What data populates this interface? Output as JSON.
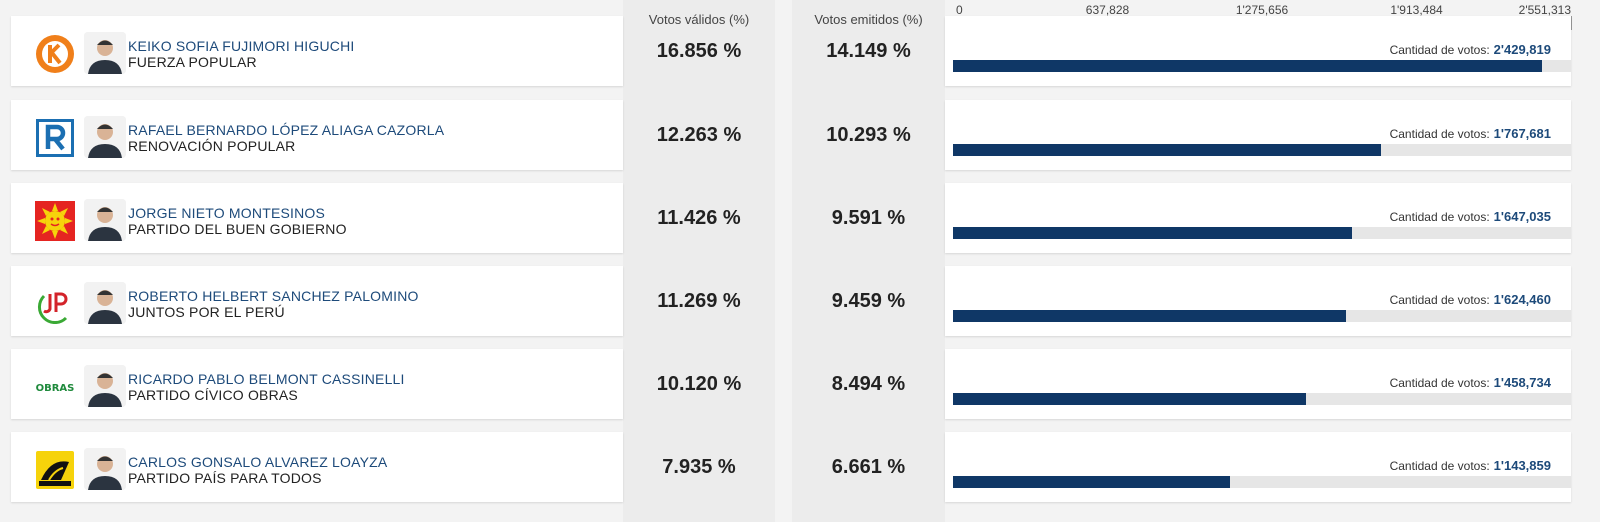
{
  "headers": {
    "valid": "Votos válidos (%)",
    "emitted": "Votos emitidos (%)"
  },
  "axis": {
    "max": 2551313,
    "ticks": [
      "0",
      "637,828",
      "1'275,656",
      "1'913,484",
      "2'551,313"
    ]
  },
  "votes_label": "Cantidad de votos:",
  "colors": {
    "bar": "#0f3766",
    "name": "#1d4a7a"
  },
  "candidates": [
    {
      "name": "KEIKO SOFIA FUJIMORI HIGUCHI",
      "party": "FUERZA POPULAR",
      "valid_pct": "16.856 %",
      "emitted_pct": "14.149 %",
      "votes_text": "2'429,819",
      "votes": 2429819,
      "logo": "fuerza-popular-k-logo"
    },
    {
      "name": "RAFAEL BERNARDO LÓPEZ ALIAGA CAZORLA",
      "party": "RENOVACIÓN POPULAR",
      "valid_pct": "12.263 %",
      "emitted_pct": "10.293 %",
      "votes_text": "1'767,681",
      "votes": 1767681,
      "logo": "renovacion-popular-r-logo"
    },
    {
      "name": "JORGE NIETO MONTESINOS",
      "party": "PARTIDO DEL BUEN GOBIERNO",
      "valid_pct": "11.426 %",
      "emitted_pct": "9.591 %",
      "votes_text": "1'647,035",
      "votes": 1647035,
      "logo": "buen-gobierno-sun-logo"
    },
    {
      "name": "ROBERTO HELBERT SANCHEZ PALOMINO",
      "party": "JUNTOS POR EL PERÚ",
      "valid_pct": "11.269 %",
      "emitted_pct": "9.459 %",
      "votes_text": "1'624,460",
      "votes": 1624460,
      "logo": "juntos-por-el-peru-jp-logo"
    },
    {
      "name": "RICARDO PABLO BELMONT CASSINELLI",
      "party": "PARTIDO CÍVICO OBRAS",
      "valid_pct": "10.120 %",
      "emitted_pct": "8.494 %",
      "votes_text": "1'458,734",
      "votes": 1458734,
      "logo": "obras-logo"
    },
    {
      "name": "CARLOS GONSALO ALVAREZ LOAYZA",
      "party": "PARTIDO PAÍS PARA TODOS",
      "valid_pct": "7.935 %",
      "emitted_pct": "6.661 %",
      "votes_text": "1'143,859",
      "votes": 1143859,
      "logo": "pais-para-todos-logo"
    }
  ]
}
